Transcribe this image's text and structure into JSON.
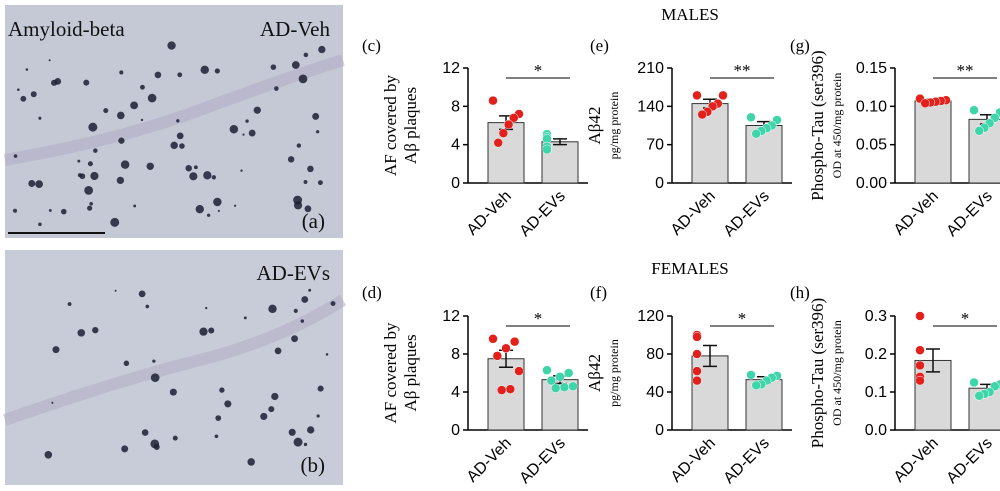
{
  "figure": {
    "images": [
      {
        "label": "(a)",
        "texts": [
          "Amyloid-beta",
          "AD-Veh"
        ]
      },
      {
        "label": "(b)",
        "texts": [
          "AD-EVs"
        ]
      }
    ],
    "section_titles": [
      "MALES",
      "FEMALES"
    ]
  },
  "chart_data": [
    {
      "type": "bar",
      "panel": "(c)",
      "ylabel": [
        "AF covered by",
        "Aβ plaques"
      ],
      "categories": [
        "AD-Veh",
        "AD-EVs"
      ],
      "values": [
        6.3,
        4.3
      ],
      "errors": [
        0.7,
        0.3
      ],
      "points": [
        [
          8.6,
          7.2,
          6.8,
          6.1,
          5.2,
          4.2
        ],
        [
          5.1,
          4.8,
          4.6,
          3.8,
          3.5
        ]
      ],
      "colors": [
        "#e3201b",
        "#3fd5aa"
      ],
      "bar_color": "#d9d9d9",
      "significance": "*",
      "ylim": [
        0,
        12
      ],
      "yticks": [
        0,
        4,
        8,
        12
      ]
    },
    {
      "type": "bar",
      "panel": "(e)",
      "ylabel": [
        "Aβ42"
      ],
      "ylabel_sub": "pg/mg protein",
      "categories": [
        "AD-Veh",
        "AD-EVs"
      ],
      "values": [
        145,
        105
      ],
      "errors": [
        8,
        7
      ],
      "points": [
        [
          160,
          160,
          145,
          140,
          130,
          125
        ],
        [
          120,
          115,
          105,
          100,
          95,
          90
        ]
      ],
      "colors": [
        "#e3201b",
        "#3fd5aa"
      ],
      "bar_color": "#d9d9d9",
      "significance": "**",
      "ylim": [
        0,
        210
      ],
      "yticks": [
        0,
        70,
        140,
        210
      ]
    },
    {
      "type": "bar",
      "panel": "(g)",
      "ylabel": [
        "Phospho-Tau (ser396)"
      ],
      "ylabel_sub": "OD at 450/mg protein",
      "categories": [
        "AD-Veh",
        "AD-EVs"
      ],
      "values": [
        0.107,
        0.083
      ],
      "errors": [
        0.002,
        0.006
      ],
      "points": [
        [
          0.11,
          0.108,
          0.107,
          0.106,
          0.105,
          0.104
        ],
        [
          0.095,
          0.092,
          0.085,
          0.078,
          0.072,
          0.068
        ]
      ],
      "colors": [
        "#e3201b",
        "#3fd5aa"
      ],
      "bar_color": "#d9d9d9",
      "significance": "**",
      "ylim": [
        0,
        0.15
      ],
      "yticks": [
        {
          "value": 0,
          "label": "0.00"
        },
        {
          "value": 0.05,
          "label": "0.05"
        },
        {
          "value": 0.1,
          "label": "0.10"
        },
        {
          "value": 0.15,
          "label": "0.15"
        }
      ]
    },
    {
      "type": "bar",
      "panel": "(d)",
      "ylabel": [
        "AF covered by",
        "Aβ plaques"
      ],
      "categories": [
        "AD-Veh",
        "AD-EVs"
      ],
      "values": [
        7.5,
        5.3
      ],
      "errors": [
        0.9,
        0.4
      ],
      "points": [
        [
          9.6,
          9.3,
          8.6,
          7.8,
          6.2,
          4.3,
          4.2
        ],
        [
          6.3,
          6.0,
          5.6,
          5.2,
          4.6,
          4.5,
          4.4
        ]
      ],
      "colors": [
        "#e3201b",
        "#3fd5aa"
      ],
      "bar_color": "#d9d9d9",
      "significance": "*",
      "ylim": [
        0,
        12
      ],
      "yticks": [
        0,
        4,
        8,
        12
      ]
    },
    {
      "type": "bar",
      "panel": "(f)",
      "ylabel": [
        "Aβ42"
      ],
      "ylabel_sub": "pg/mg protein",
      "categories": [
        "AD-Veh",
        "AD-EVs"
      ],
      "values": [
        78,
        53
      ],
      "errors": [
        11,
        3
      ],
      "points": [
        [
          100,
          98,
          80,
          62,
          52
        ],
        [
          58,
          57,
          55,
          52,
          48,
          47
        ]
      ],
      "colors": [
        "#e3201b",
        "#3fd5aa"
      ],
      "bar_color": "#d9d9d9",
      "significance": "*",
      "ylim": [
        0,
        120
      ],
      "yticks": [
        0,
        40,
        80,
        120
      ]
    },
    {
      "type": "bar",
      "panel": "(h)",
      "ylabel": [
        "Phospho-Tau (ser396)"
      ],
      "ylabel_sub": "OD at 450/mg protein",
      "categories": [
        "AD-Veh",
        "AD-EVs"
      ],
      "values": [
        0.183,
        0.11
      ],
      "errors": [
        0.03,
        0.01
      ],
      "points": [
        [
          0.3,
          0.21,
          0.17,
          0.14,
          0.13
        ],
        [
          0.125,
          0.12,
          0.115,
          0.1,
          0.095,
          0.09
        ]
      ],
      "colors": [
        "#e3201b",
        "#3fd5aa"
      ],
      "bar_color": "#d9d9d9",
      "significance": "*",
      "ylim": [
        0,
        0.3
      ],
      "yticks": [
        {
          "value": 0,
          "label": "0.0"
        },
        {
          "value": 0.1,
          "label": "0.1"
        },
        {
          "value": 0.2,
          "label": "0.2"
        },
        {
          "value": 0.3,
          "label": "0.3"
        }
      ]
    }
  ]
}
